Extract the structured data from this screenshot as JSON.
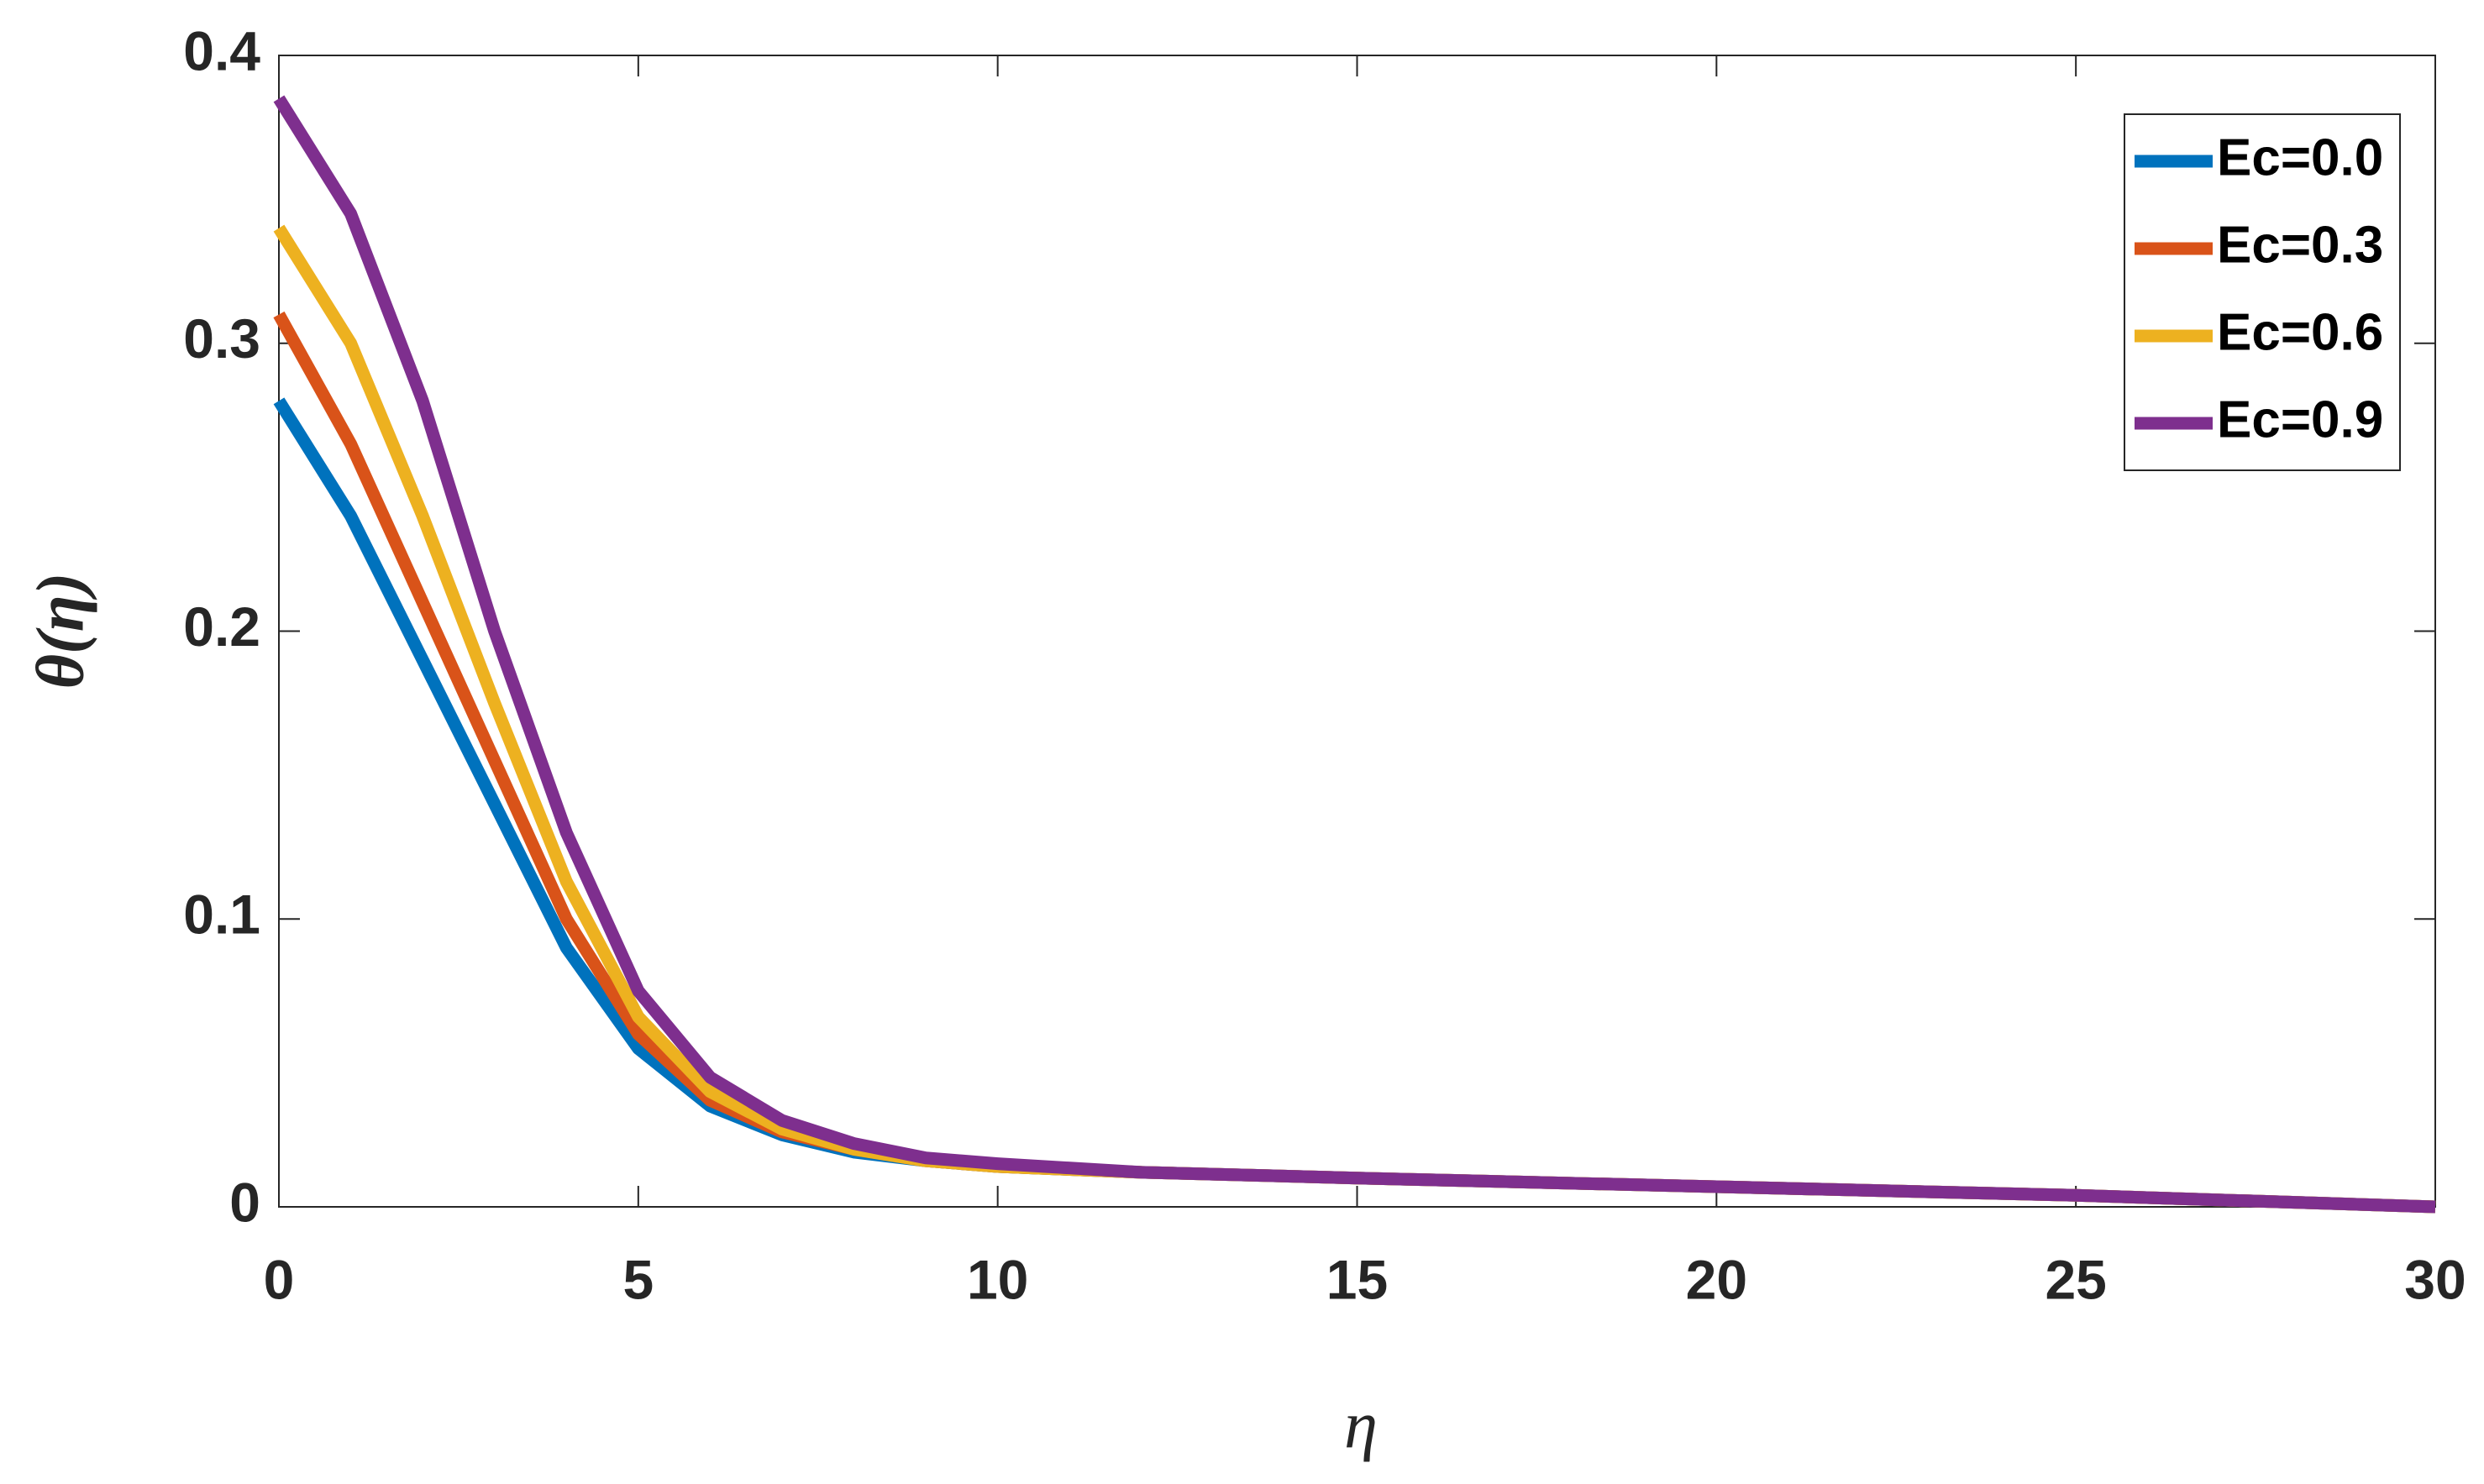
{
  "chart_data": {
    "type": "line",
    "x_label": "η",
    "y_label": "θ(η)",
    "x": [
      0,
      1,
      2,
      3,
      4,
      5,
      6,
      7,
      8,
      9,
      10,
      12,
      15,
      20,
      25,
      30
    ],
    "series": [
      {
        "name": "Ec=0.0",
        "color": "#0072bd",
        "values": [
          0.28,
          0.24,
          0.19,
          0.14,
          0.09,
          0.055,
          0.035,
          0.025,
          0.019,
          0.016,
          0.014,
          0.012,
          0.01,
          0.007,
          0.004,
          0.0
        ]
      },
      {
        "name": "Ec=0.3",
        "color": "#d95319",
        "values": [
          0.31,
          0.265,
          0.21,
          0.155,
          0.1,
          0.06,
          0.037,
          0.026,
          0.02,
          0.016,
          0.014,
          0.012,
          0.01,
          0.007,
          0.004,
          0.0
        ]
      },
      {
        "name": "Ec=0.6",
        "color": "#edb120",
        "values": [
          0.34,
          0.3,
          0.24,
          0.175,
          0.113,
          0.066,
          0.04,
          0.027,
          0.02,
          0.016,
          0.014,
          0.012,
          0.01,
          0.007,
          0.004,
          0.0
        ]
      },
      {
        "name": "Ec=0.9",
        "color": "#7e2f8e",
        "values": [
          0.385,
          0.345,
          0.28,
          0.2,
          0.13,
          0.075,
          0.045,
          0.03,
          0.022,
          0.017,
          0.015,
          0.012,
          0.01,
          0.007,
          0.004,
          0.0
        ]
      }
    ],
    "xlim": [
      0,
      30
    ],
    "xticks": [
      0,
      5,
      10,
      15,
      20,
      25,
      30
    ],
    "ylim": [
      0,
      0.4
    ],
    "yticks": [
      0,
      0.1,
      0.2,
      0.3,
      0.4
    ],
    "legend": "upper-right"
  }
}
